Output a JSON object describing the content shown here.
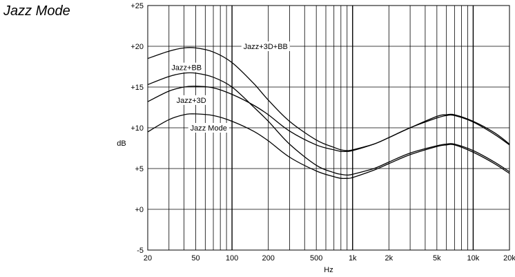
{
  "page": {
    "title": "Jazz Mode"
  },
  "chart_data": {
    "type": "line",
    "title": "",
    "xlabel": "Hz",
    "ylabel": "dB",
    "xscale": "log",
    "xlim": [
      20,
      20000
    ],
    "ylim": [
      -5,
      25
    ],
    "yticks": [
      -5,
      0,
      5,
      10,
      15,
      20,
      25
    ],
    "ytick_labels": [
      "-5",
      "+0",
      "+5",
      "+10",
      "+15",
      "+20",
      "+25"
    ],
    "xticks": [
      20,
      50,
      100,
      200,
      500,
      1000,
      2000,
      5000,
      10000,
      20000
    ],
    "xtick_labels": [
      "20",
      "50",
      "100",
      "200",
      "500",
      "1k",
      "2k",
      "5k",
      "10k",
      "20k"
    ],
    "grid": true,
    "series": [
      {
        "name": "Jazz+3D+BB",
        "x": [
          20,
          30,
          40,
          50,
          70,
          100,
          150,
          200,
          300,
          500,
          700,
          800,
          900,
          1000,
          1500,
          2000,
          3000,
          5000,
          6000,
          7000,
          10000,
          15000,
          20000
        ],
        "y": [
          18.5,
          19.4,
          19.8,
          19.8,
          19.3,
          18.0,
          15.5,
          13.4,
          10.8,
          8.5,
          7.6,
          7.3,
          7.2,
          7.3,
          8.0,
          8.8,
          10.0,
          11.4,
          11.6,
          11.6,
          10.8,
          9.4,
          8.0
        ]
      },
      {
        "name": "Jazz+BB",
        "x": [
          20,
          30,
          40,
          50,
          70,
          100,
          150,
          200,
          300,
          500,
          700,
          800,
          900,
          1000,
          1500,
          2000,
          3000,
          5000,
          6000,
          7000,
          10000,
          15000,
          20000
        ],
        "y": [
          15.3,
          16.3,
          16.7,
          16.7,
          16.2,
          15.0,
          12.6,
          10.8,
          8.0,
          5.4,
          4.5,
          4.3,
          4.2,
          4.3,
          5.0,
          5.8,
          6.9,
          7.8,
          8.0,
          8.0,
          7.2,
          5.8,
          4.6
        ]
      },
      {
        "name": "Jazz+3D",
        "x": [
          20,
          30,
          40,
          50,
          70,
          100,
          150,
          200,
          300,
          500,
          700,
          800,
          900,
          1000,
          1500,
          2000,
          3000,
          5000,
          6000,
          7000,
          10000,
          15000,
          20000
        ],
        "y": [
          13.2,
          14.5,
          15.0,
          15.1,
          14.9,
          14.1,
          12.8,
          11.6,
          9.6,
          7.9,
          7.3,
          7.1,
          7.1,
          7.2,
          8.0,
          8.8,
          10.0,
          11.2,
          11.5,
          11.5,
          10.7,
          9.2,
          7.9
        ]
      },
      {
        "name": "Jazz Mode",
        "x": [
          20,
          30,
          40,
          50,
          70,
          100,
          150,
          200,
          300,
          500,
          700,
          800,
          900,
          1000,
          1500,
          2000,
          3000,
          5000,
          6000,
          7000,
          10000,
          15000,
          20000
        ],
        "y": [
          9.5,
          11.0,
          11.6,
          11.7,
          11.5,
          10.8,
          9.6,
          8.4,
          6.4,
          4.7,
          4.0,
          3.8,
          3.8,
          3.9,
          4.8,
          5.6,
          6.7,
          7.7,
          7.9,
          7.9,
          7.0,
          5.6,
          4.4
        ]
      }
    ],
    "annotations": [
      {
        "text": "Jazz+3D+BB",
        "series": "Jazz+3D+BB",
        "x": 190,
        "y": 20.0
      },
      {
        "text": "Jazz+BB",
        "series": "Jazz+BB",
        "x": 42,
        "y": 17.4
      },
      {
        "text": "Jazz+3D",
        "series": "Jazz+3D",
        "x": 46,
        "y": 13.4
      },
      {
        "text": "Jazz Mode",
        "series": "Jazz Mode",
        "x": 64,
        "y": 10.0
      }
    ]
  }
}
